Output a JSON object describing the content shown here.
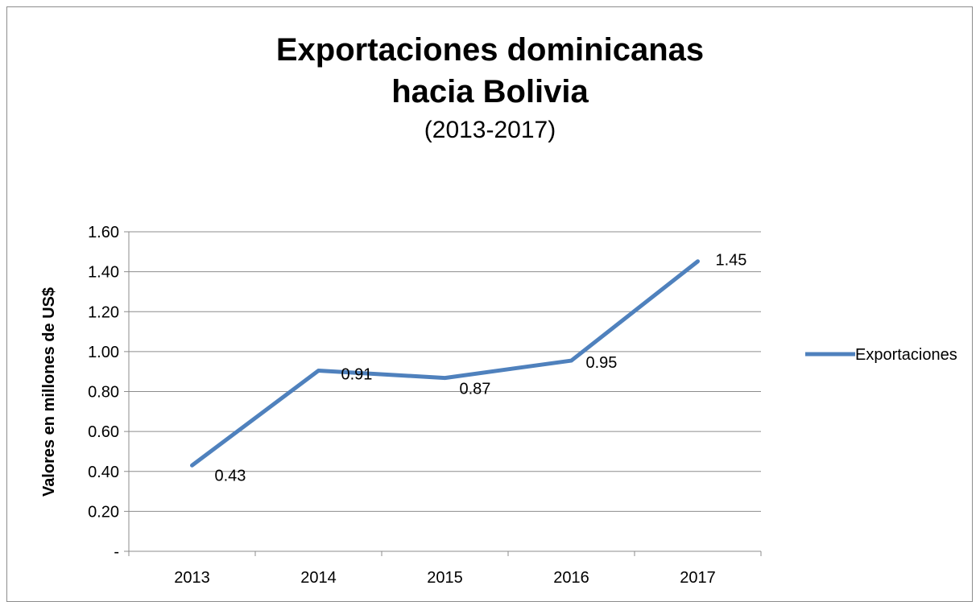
{
  "chart_data": {
    "type": "line",
    "title": [
      "Exportaciones dominicanas",
      "hacia Bolivia"
    ],
    "subtitle": "(2013-2017)",
    "ylabel": "Valores en millones de US$",
    "xlabel": "",
    "categories": [
      "2013",
      "2014",
      "2015",
      "2016",
      "2017"
    ],
    "series": [
      {
        "name": "Exportaciones",
        "values": [
          0.43,
          0.905,
          0.868,
          0.955,
          1.452
        ],
        "labels": [
          "0.43",
          "0.91",
          "0.87",
          "0.95",
          "1.45"
        ],
        "color": "#4f81bd"
      }
    ],
    "ylim": [
      0,
      1.6
    ],
    "yticks": [
      0,
      0.2,
      0.4,
      0.6,
      0.8,
      1.0,
      1.2,
      1.4,
      1.6
    ],
    "ytick_labels": [
      "-",
      "0.20",
      "0.40",
      "0.60",
      "0.80",
      "1.00",
      "1.20",
      "1.40",
      "1.60"
    ],
    "grid": true,
    "legend_position": "right"
  }
}
